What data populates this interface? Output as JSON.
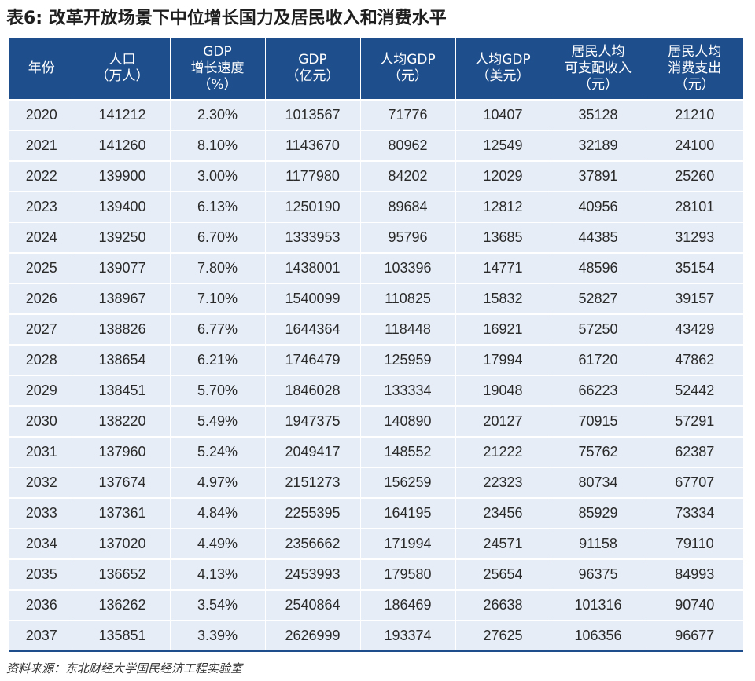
{
  "title": "表6: 改革开放场景下中位增长国力及居民收入和消费水平",
  "table": {
    "headers": [
      "年份",
      "人口\n（万人）",
      "GDP\n增长速度\n（%）",
      "GDP\n（亿元）",
      "人均GDP\n（元）",
      "人均GDP\n（美元）",
      "居民人均\n可支配收入\n（元）",
      "居民人均\n消费支出\n（元）"
    ],
    "rows": [
      [
        "2020",
        "141212",
        "2.30%",
        "1013567",
        "71776",
        "10407",
        "35128",
        "21210"
      ],
      [
        "2021",
        "141260",
        "8.10%",
        "1143670",
        "80962",
        "12549",
        "32189",
        "24100"
      ],
      [
        "2022",
        "139900",
        "3.00%",
        "1177980",
        "84202",
        "12029",
        "37891",
        "25260"
      ],
      [
        "2023",
        "139400",
        "6.13%",
        "1250190",
        "89684",
        "12812",
        "40956",
        "28101"
      ],
      [
        "2024",
        "139250",
        "6.70%",
        "1333953",
        "95796",
        "13685",
        "44385",
        "31293"
      ],
      [
        "2025",
        "139077",
        "7.80%",
        "1438001",
        "103396",
        "14771",
        "48596",
        "35154"
      ],
      [
        "2026",
        "138967",
        "7.10%",
        "1540099",
        "110825",
        "15832",
        "52827",
        "39157"
      ],
      [
        "2027",
        "138826",
        "6.77%",
        "1644364",
        "118448",
        "16921",
        "57250",
        "43429"
      ],
      [
        "2028",
        "138654",
        "6.21%",
        "1746479",
        "125959",
        "17994",
        "61720",
        "47862"
      ],
      [
        "2029",
        "138451",
        "5.70%",
        "1846028",
        "133334",
        "19048",
        "66223",
        "52442"
      ],
      [
        "2030",
        "138220",
        "5.49%",
        "1947375",
        "140890",
        "20127",
        "70915",
        "57291"
      ],
      [
        "2031",
        "137960",
        "5.24%",
        "2049417",
        "148552",
        "21222",
        "75762",
        "62387"
      ],
      [
        "2032",
        "137674",
        "4.97%",
        "2151273",
        "156259",
        "22323",
        "80734",
        "67707"
      ],
      [
        "2033",
        "137361",
        "4.84%",
        "2255395",
        "164195",
        "23456",
        "85929",
        "73334"
      ],
      [
        "2034",
        "137020",
        "4.49%",
        "2356662",
        "171994",
        "24571",
        "91158",
        "79110"
      ],
      [
        "2035",
        "136652",
        "4.13%",
        "2453993",
        "179580",
        "25654",
        "96375",
        "84993"
      ],
      [
        "2036",
        "136262",
        "3.54%",
        "2540864",
        "186469",
        "26638",
        "101316",
        "90740"
      ],
      [
        "2037",
        "135851",
        "3.39%",
        "2626999",
        "193374",
        "27625",
        "106356",
        "96677"
      ]
    ]
  },
  "source": "资料来源：东北财经大学国民经济工程实验室",
  "colors": {
    "header_bg": "#1e4e8c",
    "cell_bg": "#e6edf6"
  }
}
